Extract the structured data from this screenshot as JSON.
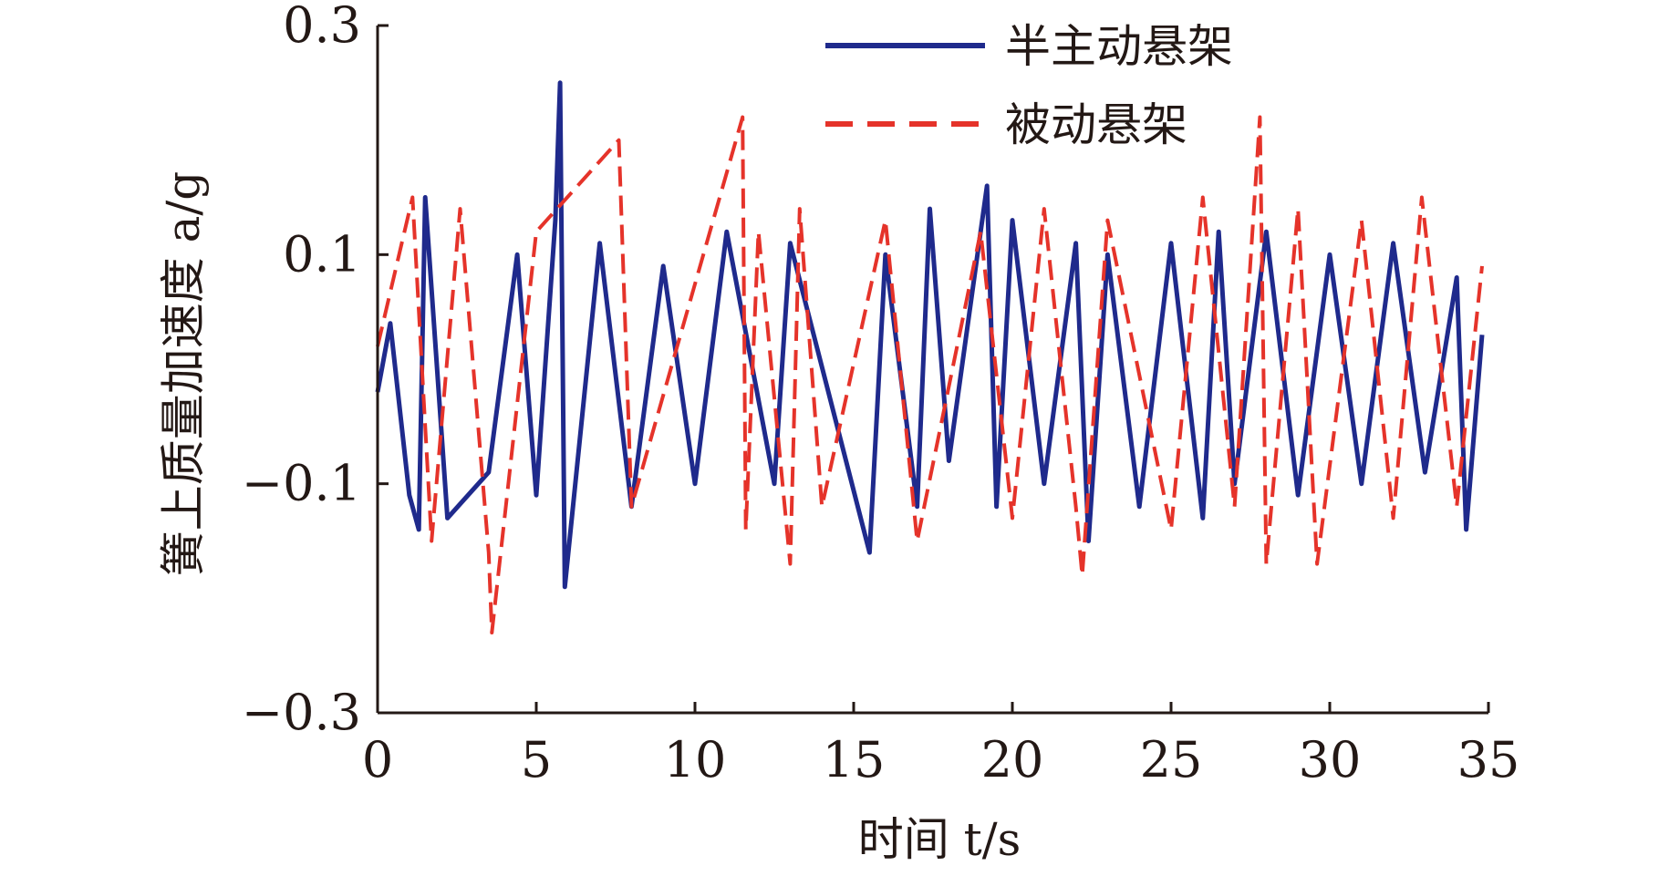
{
  "chart_data": {
    "type": "line",
    "title": "",
    "xlabel": "时间 t/s",
    "ylabel": "簧上质量加速度 a/g",
    "xlim": [
      0,
      35
    ],
    "ylim": [
      -0.3,
      0.3
    ],
    "xticks": [
      "0",
      "5",
      "10",
      "15",
      "20",
      "25",
      "30",
      "35"
    ],
    "yticks": [
      "0.3",
      "0.1",
      "−0.1",
      "−0.3"
    ],
    "ytick_values": [
      0.3,
      0.1,
      -0.1,
      -0.3
    ],
    "grid": false,
    "legend_position": "top-right",
    "series": [
      {
        "name": "半主动悬架",
        "color": "#1f2a8c",
        "style": "solid",
        "x": [
          0,
          0.4,
          1.0,
          1.3,
          1.5,
          2.2,
          3.5,
          4.4,
          5.0,
          5.6,
          5.75,
          5.9,
          7.0,
          8.0,
          9.0,
          10.0,
          11.0,
          12.5,
          13.0,
          15.5,
          16.0,
          17.0,
          17.4,
          18.0,
          19.0,
          19.2,
          19.5,
          20.0,
          21.0,
          22.0,
          22.4,
          23.0,
          24.0,
          25.0,
          26.0,
          26.5,
          27.0,
          28.0,
          29.0,
          30.0,
          31.0,
          32.0,
          33.0,
          34.0,
          34.3,
          34.8
        ],
        "values": [
          -0.02,
          0.04,
          -0.11,
          -0.14,
          0.15,
          -0.13,
          -0.09,
          0.1,
          -0.11,
          0.13,
          0.25,
          -0.19,
          0.11,
          -0.12,
          0.09,
          -0.1,
          0.12,
          -0.1,
          0.11,
          -0.16,
          0.1,
          -0.12,
          0.14,
          -0.08,
          0.12,
          0.16,
          -0.12,
          0.13,
          -0.1,
          0.11,
          -0.15,
          0.1,
          -0.12,
          0.11,
          -0.13,
          0.12,
          -0.1,
          0.12,
          -0.11,
          0.1,
          -0.1,
          0.11,
          -0.09,
          0.08,
          -0.14,
          0.03
        ]
      },
      {
        "name": "被动悬架",
        "color": "#e5332a",
        "style": "dashed",
        "x": [
          0,
          1.1,
          1.7,
          2.6,
          3.5,
          3.6,
          5.0,
          7.6,
          8.0,
          11.5,
          11.6,
          12.0,
          13.0,
          13.3,
          14.0,
          16.0,
          17.0,
          19.0,
          20.0,
          21.0,
          22.0,
          22.2,
          23.0,
          25.0,
          26.0,
          27.0,
          27.8,
          28.0,
          29.0,
          29.6,
          31.0,
          32.0,
          32.9,
          34.0,
          34.8
        ],
        "values": [
          0.02,
          0.15,
          -0.15,
          0.14,
          -0.16,
          -0.23,
          0.12,
          0.2,
          -0.12,
          0.22,
          -0.14,
          0.12,
          -0.17,
          0.14,
          -0.12,
          0.13,
          -0.15,
          0.12,
          -0.13,
          0.14,
          -0.12,
          -0.18,
          0.13,
          -0.14,
          0.15,
          -0.12,
          0.22,
          -0.17,
          0.14,
          -0.17,
          0.13,
          -0.13,
          0.15,
          -0.12,
          0.09
        ]
      }
    ]
  }
}
